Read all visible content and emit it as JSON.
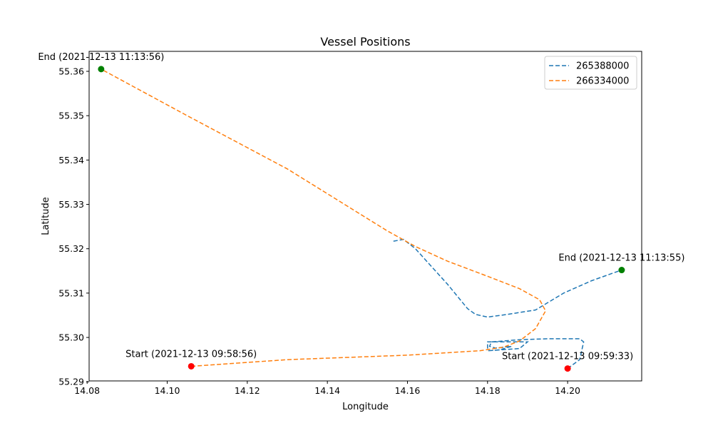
{
  "chart_data": {
    "type": "line",
    "title": "Vessel Positions",
    "xlabel": "Longitude",
    "ylabel": "Latitude",
    "xlim": [
      14.0805,
      14.2185
    ],
    "ylim": [
      55.2902,
      55.3645
    ],
    "x_ticks": [
      14.08,
      14.1,
      14.12,
      14.14,
      14.16,
      14.18,
      14.2
    ],
    "x_tick_labels": [
      "14.08",
      "14.10",
      "14.12",
      "14.14",
      "14.16",
      "14.18",
      "14.20"
    ],
    "y_ticks": [
      55.29,
      55.3,
      55.31,
      55.32,
      55.33,
      55.34,
      55.35,
      55.36
    ],
    "y_tick_labels": [
      "55.29",
      "55.30",
      "55.31",
      "55.32",
      "55.33",
      "55.34",
      "55.35",
      "55.36"
    ],
    "grid": false,
    "legend_position": "top-right",
    "series": [
      {
        "name": "265388000",
        "color": "#1f77b4",
        "line_style": "dashed",
        "points": [
          [
            14.2,
            55.293
          ],
          [
            14.203,
            55.295
          ],
          [
            14.204,
            55.299
          ],
          [
            14.203,
            55.2997
          ],
          [
            14.195,
            55.2997
          ],
          [
            14.188,
            55.2995
          ],
          [
            14.181,
            55.299
          ],
          [
            14.1805,
            55.298
          ],
          [
            14.182,
            55.2976
          ],
          [
            14.186,
            55.298
          ],
          [
            14.183,
            55.2972
          ],
          [
            14.18,
            55.297
          ],
          [
            14.188,
            55.2975
          ],
          [
            14.19,
            55.299
          ],
          [
            14.18,
            55.299
          ],
          [
            14.18,
            55.2975
          ]
        ],
        "main_path": [
          [
            14.1565,
            55.3217
          ],
          [
            14.159,
            55.3221
          ],
          [
            14.162,
            55.32
          ],
          [
            14.165,
            55.317
          ],
          [
            14.17,
            55.312
          ],
          [
            14.175,
            55.3065
          ],
          [
            14.177,
            55.3052
          ],
          [
            14.18,
            55.3046
          ],
          [
            14.185,
            55.3052
          ],
          [
            14.192,
            55.3062
          ],
          [
            14.199,
            55.31
          ],
          [
            14.206,
            55.3128
          ],
          [
            14.2135,
            55.3152
          ]
        ],
        "start": {
          "x": 14.2,
          "y": 55.293,
          "label": "Start (2021-12-13 09:59:33)"
        },
        "end": {
          "x": 14.2135,
          "y": 55.3152,
          "label": "End (2021-12-13 11:13:55)"
        }
      },
      {
        "name": "266334000",
        "color": "#ff7f0e",
        "line_style": "dashed",
        "points": [
          [
            14.106,
            55.2935
          ],
          [
            14.13,
            55.295
          ],
          [
            14.16,
            55.296
          ],
          [
            14.178,
            55.297
          ],
          [
            14.184,
            55.2978
          ],
          [
            14.188,
            55.2992
          ],
          [
            14.192,
            55.302
          ],
          [
            14.1945,
            55.306
          ],
          [
            14.193,
            55.3085
          ],
          [
            14.188,
            55.311
          ],
          [
            14.18,
            55.3138
          ],
          [
            14.17,
            55.3172
          ],
          [
            14.162,
            55.3205
          ],
          [
            14.155,
            55.324
          ],
          [
            14.13,
            55.338
          ],
          [
            14.105,
            55.35
          ],
          [
            14.0835,
            55.3605
          ]
        ],
        "start": {
          "x": 14.106,
          "y": 55.2935,
          "label": "Start (2021-12-13 09:58:56)"
        },
        "end": {
          "x": 14.0835,
          "y": 55.3605,
          "label": "End (2021-12-13 11:13:56)"
        }
      }
    ],
    "start_marker_color": "#ff0000",
    "end_marker_color": "#008000"
  }
}
